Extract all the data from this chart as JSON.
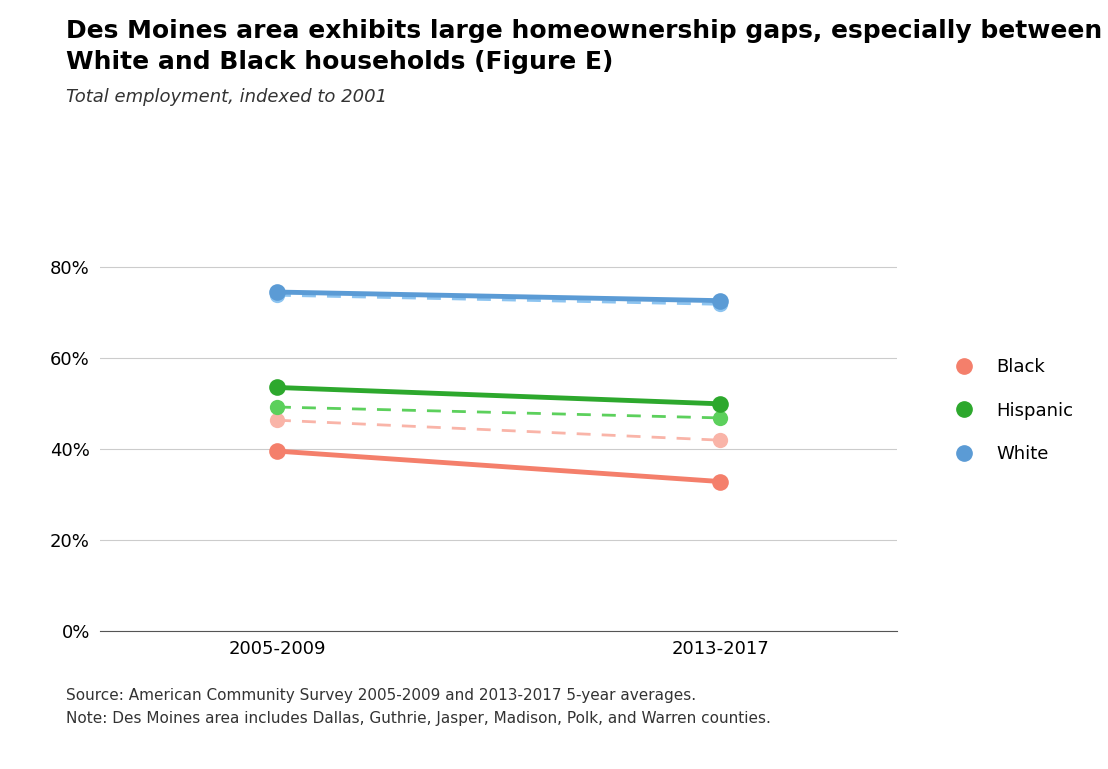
{
  "title_line1": "Des Moines area exhibits large homeownership gaps, especially between",
  "title_line2": "White and Black households (Figure E)",
  "subtitle": "Total employment, indexed to 2001",
  "footnote1": "Source: American Community Survey 2005-2009 and 2013-2017 5-year averages.",
  "footnote2": "Note: Des Moines area includes Dallas, Guthrie, Jasper, Madison, Polk, and Warren counties.",
  "x_labels": [
    "2005-2009",
    "2013-2017"
  ],
  "x_positions": [
    0,
    1
  ],
  "series": [
    {
      "label": "Black",
      "color_solid": "#F47F6B",
      "color_dashed": "#F9B4A8",
      "solid_values": [
        0.395,
        0.328
      ],
      "dashed_values": [
        0.463,
        0.419
      ]
    },
    {
      "label": "Hispanic",
      "color_solid": "#2DA82D",
      "color_dashed": "#5CD05C",
      "solid_values": [
        0.535,
        0.499
      ],
      "dashed_values": [
        0.492,
        0.468
      ]
    },
    {
      "label": "White",
      "color_solid": "#5B9BD5",
      "color_dashed": "#8DC4F0",
      "solid_values": [
        0.745,
        0.726
      ],
      "dashed_values": [
        0.738,
        0.718
      ]
    }
  ],
  "ylim": [
    0,
    0.88
  ],
  "yticks": [
    0.0,
    0.2,
    0.4,
    0.6,
    0.8
  ],
  "ytick_labels": [
    "0%",
    "20%",
    "40%",
    "60%",
    "80%"
  ],
  "marker_size": 12,
  "linewidth_solid": 3.5,
  "linewidth_dashed": 2.0,
  "background_color": "#ffffff",
  "plot_bg_color": "#ffffff",
  "grid_color": "#cccccc"
}
